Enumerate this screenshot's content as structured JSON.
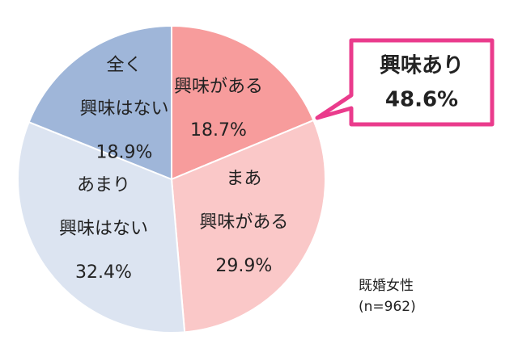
{
  "chart_data": {
    "type": "pie",
    "categories": [
      "興味がある",
      "まあ\n興味がある",
      "あまり\n興味はない",
      "全く\n興味はない"
    ],
    "values": [
      18.7,
      29.9,
      32.4,
      18.9
    ],
    "value_labels": [
      "18.7%",
      "29.9%",
      "32.4%",
      "18.9%"
    ],
    "colors": [
      "#f79c9c",
      "#fac8c8",
      "#dce4f1",
      "#9fb6d9"
    ],
    "callout": {
      "title": "興味あり",
      "value": "48.6%"
    },
    "note": [
      "既婚女性",
      "(n=962)"
    ]
  }
}
